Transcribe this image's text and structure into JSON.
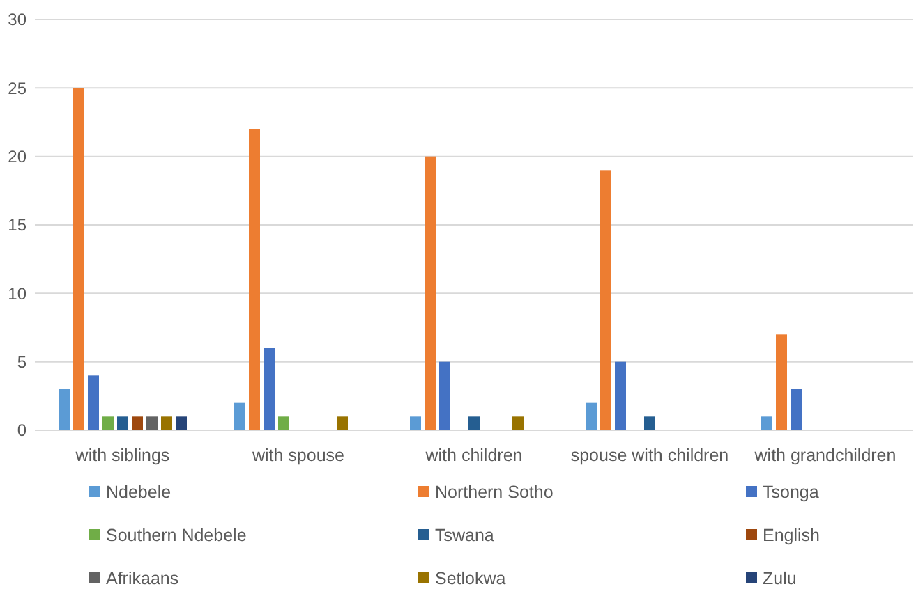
{
  "chart_data": {
    "type": "bar",
    "categories": [
      "with siblings",
      "with spouse",
      "with children",
      "spouse with children",
      "with grandchildren"
    ],
    "series": [
      {
        "name": "Ndebele",
        "color": "#5b9bd5",
        "values": [
          3,
          2,
          1,
          2,
          1
        ]
      },
      {
        "name": "Northern Sotho",
        "color": "#ed7d31",
        "values": [
          25,
          22,
          20,
          19,
          7
        ]
      },
      {
        "name": "Tsonga",
        "color": "#4472c4",
        "values": [
          4,
          6,
          5,
          5,
          3
        ]
      },
      {
        "name": "Southern Ndebele",
        "color": "#70ad47",
        "values": [
          1,
          1,
          0,
          0,
          0
        ]
      },
      {
        "name": "Tswana",
        "color": "#255e91",
        "values": [
          1,
          0,
          1,
          1,
          0
        ]
      },
      {
        "name": "English",
        "color": "#9e480e",
        "values": [
          1,
          0,
          0,
          0,
          0
        ]
      },
      {
        "name": "Afrikaans",
        "color": "#636363",
        "values": [
          1,
          0,
          0,
          0,
          0
        ]
      },
      {
        "name": "Setlokwa",
        "color": "#997300",
        "values": [
          1,
          1,
          1,
          0,
          0
        ]
      },
      {
        "name": "Zulu",
        "color": "#264478",
        "values": [
          1,
          0,
          0,
          0,
          0
        ]
      }
    ],
    "ylim": [
      0,
      30
    ],
    "yticks": [
      0,
      5,
      10,
      15,
      20,
      25,
      30
    ],
    "grid": "y",
    "legend": "bottom"
  }
}
